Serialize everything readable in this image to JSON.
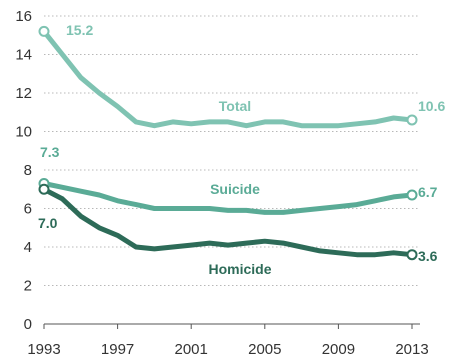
{
  "chart_data": {
    "type": "line",
    "ylim": [
      0,
      16
    ],
    "xlim": [
      1993,
      2013
    ],
    "yticks": [
      "0",
      "2",
      "4",
      "6",
      "8",
      "10",
      "12",
      "14",
      "16"
    ],
    "xticks": [
      "1993",
      "1997",
      "2001",
      "2005",
      "2009",
      "2013"
    ],
    "grid": "horizontal-dotted",
    "series": [
      {
        "name": "Total",
        "color": "#7fc3b2",
        "x": [
          1993,
          1994,
          1995,
          1996,
          1997,
          1998,
          1999,
          2000,
          2001,
          2002,
          2003,
          2004,
          2005,
          2006,
          2007,
          2008,
          2009,
          2010,
          2011,
          2012,
          2013
        ],
        "values": [
          15.2,
          14.0,
          12.8,
          12.0,
          11.3,
          10.5,
          10.3,
          10.5,
          10.4,
          10.5,
          10.5,
          10.3,
          10.5,
          10.5,
          10.3,
          10.3,
          10.3,
          10.4,
          10.5,
          10.7,
          10.6
        ],
        "start_label": "15.2",
        "end_label": "10.6"
      },
      {
        "name": "Suicide",
        "color": "#5aab96",
        "x": [
          1993,
          1994,
          1995,
          1996,
          1997,
          1998,
          1999,
          2000,
          2001,
          2002,
          2003,
          2004,
          2005,
          2006,
          2007,
          2008,
          2009,
          2010,
          2011,
          2012,
          2013
        ],
        "values": [
          7.3,
          7.1,
          6.9,
          6.7,
          6.4,
          6.2,
          6.0,
          6.0,
          6.0,
          6.0,
          5.9,
          5.9,
          5.8,
          5.8,
          5.9,
          6.0,
          6.1,
          6.2,
          6.4,
          6.6,
          6.7
        ],
        "start_label": "7.3",
        "end_label": "6.7"
      },
      {
        "name": "Homicide",
        "color": "#2d6b58",
        "x": [
          1993,
          1994,
          1995,
          1996,
          1997,
          1998,
          1999,
          2000,
          2001,
          2002,
          2003,
          2004,
          2005,
          2006,
          2007,
          2008,
          2009,
          2010,
          2011,
          2012,
          2013
        ],
        "values": [
          7.0,
          6.5,
          5.6,
          5.0,
          4.6,
          4.0,
          3.9,
          4.0,
          4.1,
          4.2,
          4.1,
          4.2,
          4.3,
          4.2,
          4.0,
          3.8,
          3.7,
          3.6,
          3.6,
          3.7,
          3.6
        ],
        "start_label": "7.0",
        "end_label": "3.6"
      }
    ]
  }
}
